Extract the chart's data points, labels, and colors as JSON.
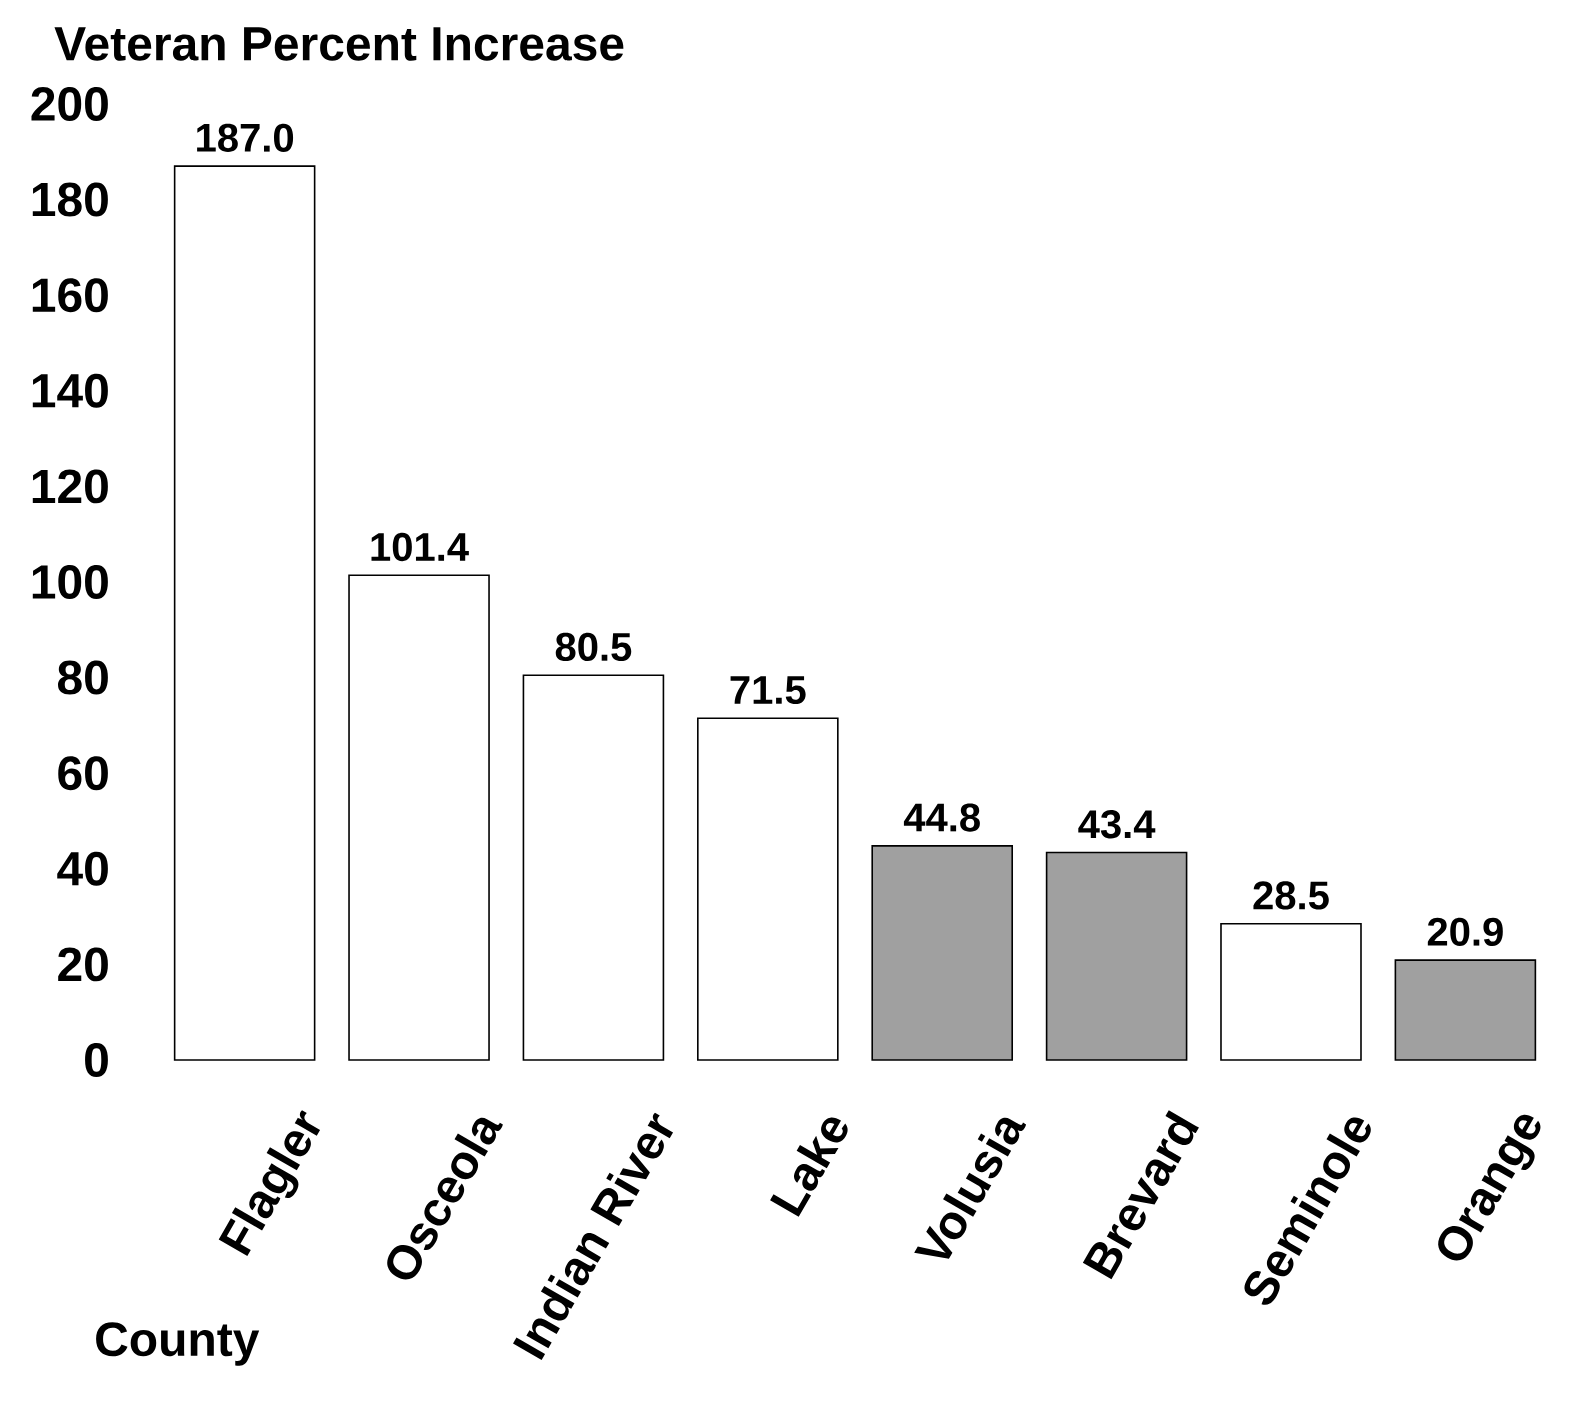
{
  "chart_data": {
    "type": "bar",
    "ylabel": "Veteran Percent Increase",
    "xlabel": "County",
    "categories": [
      "Flagler",
      "Osceola",
      "Indian River",
      "Lake",
      "Volusia",
      "Brevard",
      "Seminole",
      "Orange"
    ],
    "values": [
      187.0,
      101.4,
      80.5,
      71.5,
      44.8,
      43.4,
      28.5,
      20.9
    ],
    "colors": [
      "#ffffff",
      "#ffffff",
      "#ffffff",
      "#ffffff",
      "#a0a0a0",
      "#a0a0a0",
      "#ffffff",
      "#a0a0a0"
    ],
    "value_labels": [
      "187.0",
      "101.4",
      "80.5",
      "71.5",
      "44.8",
      "43.4",
      "28.5",
      "20.9"
    ],
    "ylim": [
      0,
      200
    ],
    "yticks": [
      0,
      20,
      40,
      60,
      80,
      100,
      120,
      140,
      160,
      180,
      200
    ],
    "grid": false
  }
}
